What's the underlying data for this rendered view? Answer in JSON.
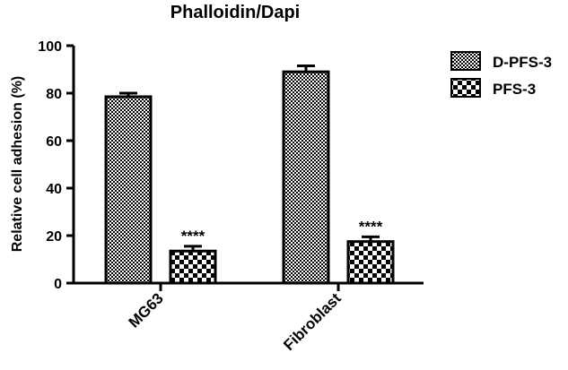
{
  "chart_data": {
    "type": "bar",
    "title": "Phalloidin/Dapi",
    "xlabel": "",
    "ylabel": "Relative cell adhesion (%)",
    "ylim": [
      0,
      100
    ],
    "yticks": [
      "0",
      "20",
      "40",
      "60",
      "80",
      "100"
    ],
    "categories": [
      "MG63",
      "Fibroblast"
    ],
    "series": [
      {
        "name": "D-PFS-3",
        "pattern": "dense-checker",
        "values": [
          78.5,
          89.0
        ],
        "errors": [
          1.5,
          2.5
        ],
        "annotations": [
          "",
          ""
        ]
      },
      {
        "name": "PFS-3",
        "pattern": "coarse-checker",
        "values": [
          13.5,
          17.5
        ],
        "errors": [
          2.0,
          2.0
        ],
        "annotations": [
          "****",
          "****"
        ]
      }
    ],
    "legend_position": "top-right",
    "grid": false,
    "colors": {
      "ink": "#000000",
      "background": "#ffffff"
    }
  }
}
